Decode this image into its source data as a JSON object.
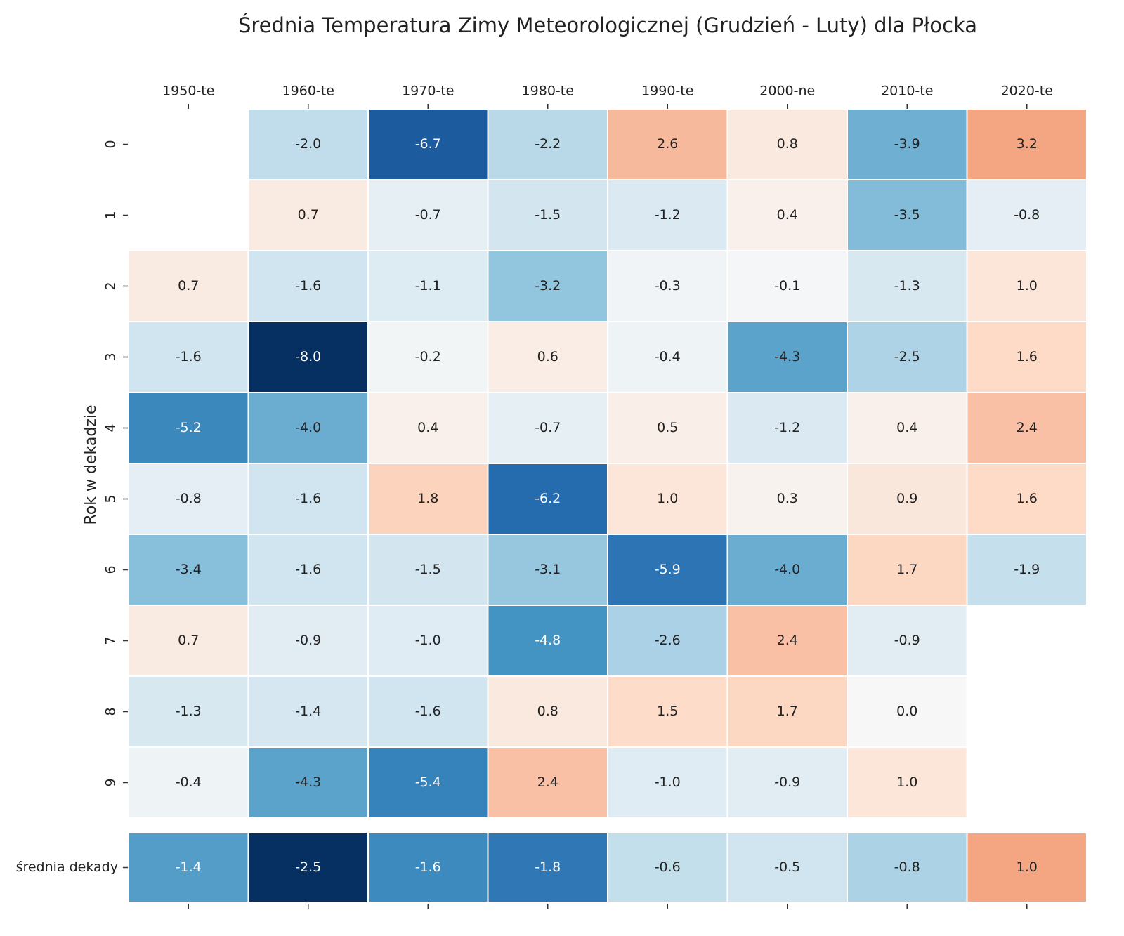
{
  "chart_data": {
    "type": "heatmap",
    "title": "Średnia Temperatura Zimy Meteorologicznej (Grudzień - Luty) dla Płocka",
    "ylabel": "Rok w dekadzie",
    "x": [
      "1950-te",
      "1960-te",
      "1970-te",
      "1980-te",
      "1990-te",
      "2000-ne",
      "2010-te",
      "2020-te"
    ],
    "y": [
      "0",
      "1",
      "2",
      "3",
      "4",
      "5",
      "6",
      "7",
      "8",
      "9"
    ],
    "colormap": [
      "#053061",
      "#2166ac",
      "#4393c3",
      "#92c5de",
      "#d1e5f0",
      "#f7f7f7",
      "#fddbc7",
      "#f4a582",
      "#d6604d",
      "#b2182b",
      "#67001f"
    ],
    "vlim": [
      -8,
      8
    ],
    "values": [
      [
        null,
        -2.0,
        -6.7,
        -2.2,
        2.6,
        0.8,
        -3.9,
        3.2
      ],
      [
        null,
        0.7,
        -0.7,
        -1.5,
        -1.2,
        0.4,
        -3.5,
        -0.8
      ],
      [
        0.7,
        -1.6,
        -1.1,
        -3.2,
        -0.3,
        -0.1,
        -1.3,
        1.0
      ],
      [
        -1.6,
        -8.0,
        -0.2,
        0.6,
        -0.4,
        -4.3,
        -2.5,
        1.6
      ],
      [
        -5.2,
        -4.0,
        0.4,
        -0.7,
        0.5,
        -1.2,
        0.4,
        2.4
      ],
      [
        -0.8,
        -1.6,
        1.8,
        -6.2,
        1.0,
        0.3,
        0.9,
        1.6
      ],
      [
        -3.4,
        -1.6,
        -1.5,
        -3.1,
        -5.9,
        -4.0,
        1.7,
        -1.9
      ],
      [
        0.7,
        -0.9,
        -1.0,
        -4.8,
        -2.6,
        2.4,
        -0.9,
        null
      ],
      [
        -1.3,
        -1.4,
        -1.6,
        0.8,
        1.5,
        1.7,
        0.0,
        null
      ],
      [
        -0.4,
        -4.3,
        -5.4,
        2.4,
        -1.0,
        -0.9,
        1.0,
        null
      ]
    ],
    "value_labels": [
      [
        null,
        "-2.0",
        "-6.7",
        "-2.2",
        "2.6",
        "0.8",
        "-3.9",
        "3.2"
      ],
      [
        null,
        "0.7",
        "-0.7",
        "-1.5",
        "-1.2",
        "0.4",
        "-3.5",
        "-0.8"
      ],
      [
        "0.7",
        "-1.6",
        "-1.1",
        "-3.2",
        "-0.3",
        "-0.1",
        "-1.3",
        "1.0"
      ],
      [
        "-1.6",
        "-8.0",
        "-0.2",
        "0.6",
        "-0.4",
        "-4.3",
        "-2.5",
        "1.6"
      ],
      [
        "-5.2",
        "-4.0",
        "0.4",
        "-0.7",
        "0.5",
        "-1.2",
        "0.4",
        "2.4"
      ],
      [
        "-0.8",
        "-1.6",
        "1.8",
        "-6.2",
        "1.0",
        "0.3",
        "0.9",
        "1.6"
      ],
      [
        "-3.4",
        "-1.6",
        "-1.5",
        "-3.1",
        "-5.9",
        "-4.0",
        "1.7",
        "-1.9"
      ],
      [
        "0.7",
        "-0.9",
        "-1.0",
        "-4.8",
        "-2.6",
        "2.4",
        "-0.9",
        null
      ],
      [
        "-1.3",
        "-1.4",
        "-1.6",
        "0.8",
        "1.5",
        "1.7",
        "0.0",
        null
      ],
      [
        "-0.4",
        "-4.3",
        "-5.4",
        "2.4",
        "-1.0",
        "-0.9",
        "1.0",
        null
      ]
    ],
    "summary": {
      "label": "średnia dekady",
      "vlim": [
        -2.5,
        2.5
      ],
      "values": [
        -1.4,
        -2.5,
        -1.6,
        -1.8,
        -0.6,
        -0.5,
        -0.8,
        1.0
      ],
      "value_labels": [
        "-1.4",
        "-2.5",
        "-1.6",
        "-1.8",
        "-0.6",
        "-0.5",
        "-0.8",
        "1.0"
      ]
    }
  }
}
